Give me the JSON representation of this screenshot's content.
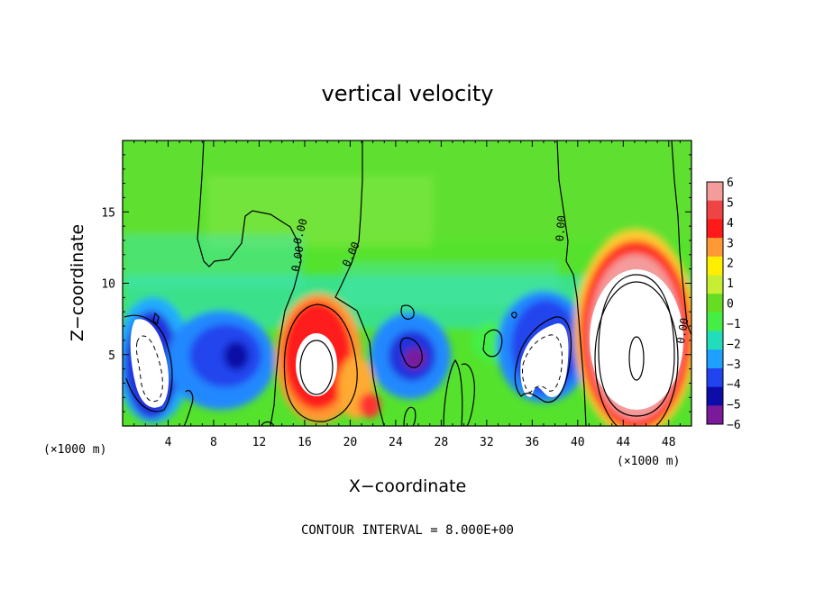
{
  "chart_data": {
    "type": "heatmap",
    "title": "vertical velocity",
    "xlabel": "X−coordinate",
    "ylabel": "Z−coordinate",
    "x_unit": "(×1000 m)",
    "xlim": [
      0,
      50
    ],
    "ylim": [
      0,
      20
    ],
    "x_ticks": [
      4,
      8,
      12,
      16,
      20,
      24,
      28,
      32,
      36,
      40,
      44,
      48
    ],
    "y_ticks": [
      5,
      10,
      15
    ],
    "colorbar": {
      "levels": [
        6,
        5,
        4,
        3,
        2,
        1,
        0,
        "−1",
        "−2",
        "−3",
        "−4",
        "−5",
        "−6"
      ],
      "colors": [
        "#f49b9b",
        "#ee4444",
        "#ff1a1a",
        "#ff9933",
        "#ffee00",
        "#c8ee33",
        "#66dd22",
        "#44ee44",
        "#22ddbb",
        "#1fa0ff",
        "#2244ee",
        "#0c0ca8",
        "#7a1a9a"
      ]
    },
    "contour_labels": [
      "0.00",
      "0.00",
      "0.00",
      "0.00",
      "0.00"
    ],
    "features": [
      {
        "kind": "downdraft",
        "x": 3.5,
        "z": 4.5,
        "value": -8
      },
      {
        "kind": "downdraft",
        "x": 9.5,
        "z": 5.0,
        "value": -5
      },
      {
        "kind": "updraft",
        "x": 17.0,
        "z": 4.5,
        "value": 8
      },
      {
        "kind": "downdraft",
        "x": 25.5,
        "z": 5.0,
        "value": -5
      },
      {
        "kind": "downdraft",
        "x": 36.0,
        "z": 4.5,
        "value": -8
      },
      {
        "kind": "updraft",
        "x": 44.5,
        "z": 5.5,
        "value": 16
      }
    ],
    "note": "CONTOUR INTERVAL = 8.000E+00"
  }
}
